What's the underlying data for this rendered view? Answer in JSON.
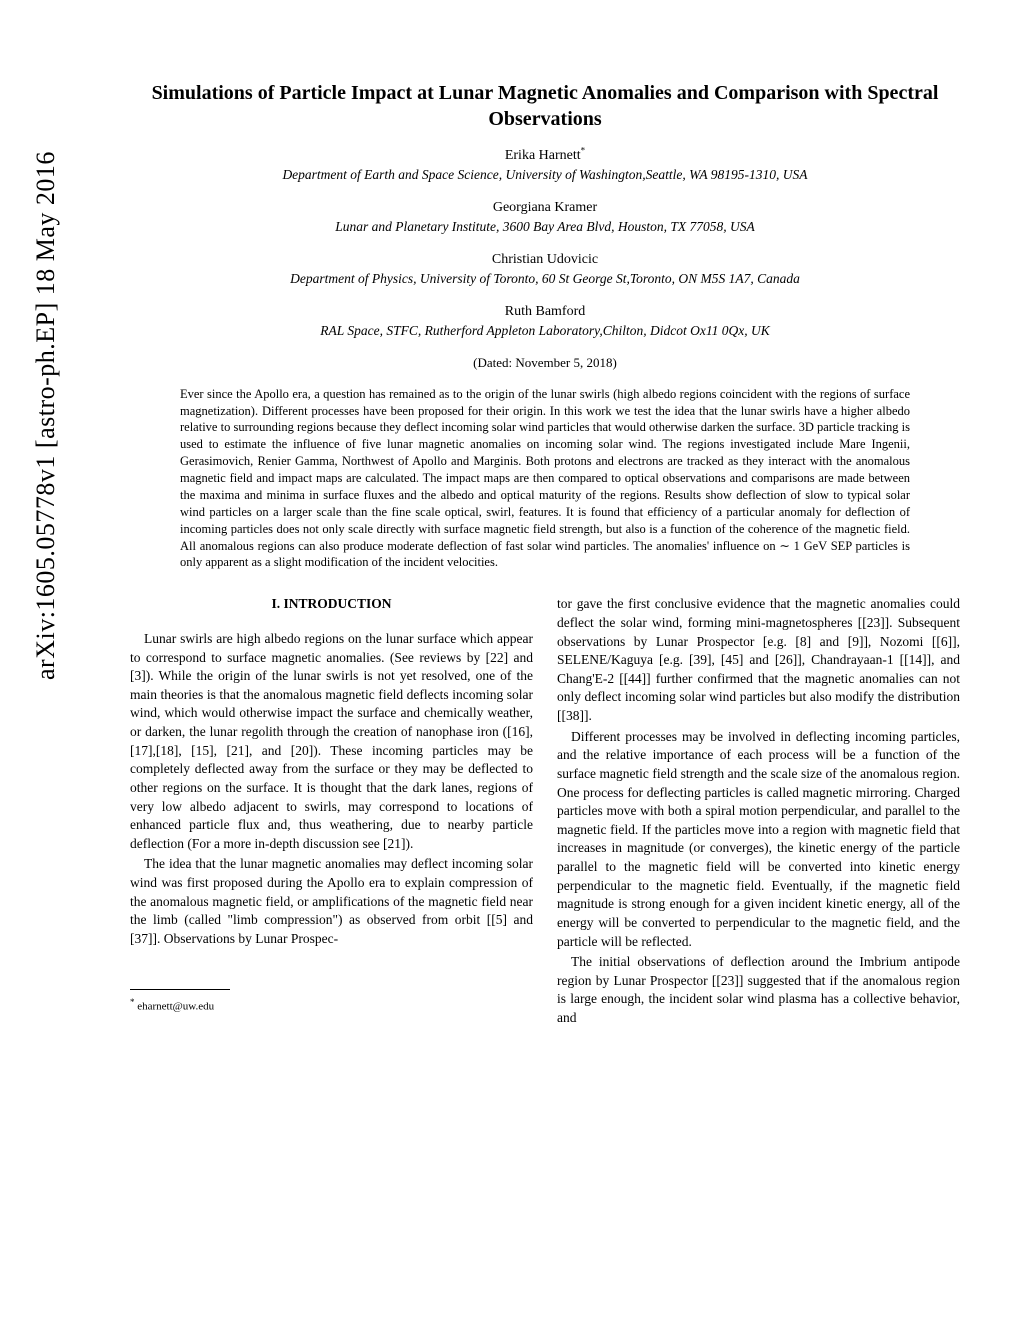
{
  "arxiv": "arXiv:1605.05778v1  [astro-ph.EP]  18 May 2016",
  "title": "Simulations of Particle Impact at Lunar Magnetic Anomalies and Comparison with Spectral Observations",
  "authors": [
    {
      "name": "Erika Harnett",
      "marker": "*",
      "affiliation": "Department of Earth and Space Science, University of Washington,Seattle, WA 98195-1310, USA"
    },
    {
      "name": "Georgiana Kramer",
      "marker": "",
      "affiliation": "Lunar and Planetary Institute, 3600 Bay Area Blvd, Houston, TX 77058, USA"
    },
    {
      "name": "Christian Udovicic",
      "marker": "",
      "affiliation": "Department of Physics, University of Toronto, 60 St George St,Toronto, ON M5S 1A7, Canada"
    },
    {
      "name": "Ruth Bamford",
      "marker": "",
      "affiliation": "RAL Space, STFC, Rutherford Appleton Laboratory,Chilton, Didcot Ox11 0Qx, UK"
    }
  ],
  "dated": "(Dated: November 5, 2018)",
  "abstract": "Ever since the Apollo era, a question has remained as to the origin of the lunar swirls (high albedo regions coincident with the regions of surface magnetization). Different processes have been proposed for their origin. In this work we test the idea that the lunar swirls have a higher albedo relative to surrounding regions because they deflect incoming solar wind particles that would otherwise darken the surface. 3D particle tracking is used to estimate the influence of five lunar magnetic anomalies on incoming solar wind. The regions investigated include Mare Ingenii, Gerasimovich, Renier Gamma, Northwest of Apollo and Marginis. Both protons and electrons are tracked as they interact with the anomalous magnetic field and impact maps are calculated. The impact maps are then compared to optical observations and comparisons are made between the maxima and minima in surface fluxes and the albedo and optical maturity of the regions. Results show deflection of slow to typical solar wind particles on a larger scale than the fine scale optical, swirl, features. It is found that efficiency of a particular anomaly for deflection of incoming particles does not only scale directly with surface magnetic field strength, but also is a function of the coherence of the magnetic field. All anomalous regions can also produce moderate deflection of fast solar wind particles. The anomalies' influence on ∼ 1 GeV SEP particles is only apparent as a slight modification of the incident velocities.",
  "section_heading": "I.   INTRODUCTION",
  "col1": {
    "p1": "Lunar swirls are high albedo regions on the lunar surface which appear to correspond to surface magnetic anomalies. (See reviews by [22] and [3]). While the origin of the lunar swirls is not yet resolved, one of the main theories is that the anomalous magnetic field deflects incoming solar wind, which would otherwise impact the surface and chemically weather, or darken, the lunar regolith through the creation of nanophase iron ([16], [17],[18], [15], [21], and [20]). These incoming particles may be completely deflected away from the surface or they may be deflected to other regions on the surface. It is thought that the dark lanes, regions of very low albedo adjacent to swirls, may correspond to locations of enhanced particle flux and, thus weathering, due to nearby particle deflection (For a more in-depth discussion see [21]).",
    "p2": "The idea that the lunar magnetic anomalies may deflect incoming solar wind was first proposed during the Apollo era to explain compression of the anomalous magnetic field, or amplifications of the magnetic field near the limb (called \"limb compression\") as observed from orbit [[5] and [37]]. Observations by Lunar Prospec-"
  },
  "col2": {
    "p1": "tor gave the first conclusive evidence that the magnetic anomalies could deflect the solar wind, forming mini-magnetospheres [[23]]. Subsequent observations by Lunar Prospector [e.g. [8] and [9]], Nozomi [[6]], SELENE/Kaguya [e.g. [39], [45] and [26]], Chandrayaan-1 [[14]], and Chang'E-2 [[44]] further confirmed that the magnetic anomalies can not only deflect incoming solar wind particles but also modify the distribution [[38]].",
    "p2": "Different processes may be involved in deflecting incoming particles, and the relative importance of each process will be a function of the surface magnetic field strength and the scale size of the anomalous region. One process for deflecting particles is called magnetic mirroring. Charged particles move with both a spiral motion perpendicular, and parallel to the magnetic field. If the particles move into a region with magnetic field that increases in magnitude (or converges), the kinetic energy of the particle parallel to the magnetic field will be converted into kinetic energy perpendicular to the magnetic field. Eventually, if the magnetic field magnitude is strong enough for a given incident kinetic energy, all of the energy will be converted to perpendicular to the magnetic field, and the particle will be reflected.",
    "p3": "The initial observations of deflection around the Imbrium antipode region by Lunar Prospector [[23]] suggested that if the anomalous region is large enough, the incident solar wind plasma has a collective behavior, and"
  },
  "footnote_marker": "*",
  "footnote": " eharnett@uw.edu"
}
